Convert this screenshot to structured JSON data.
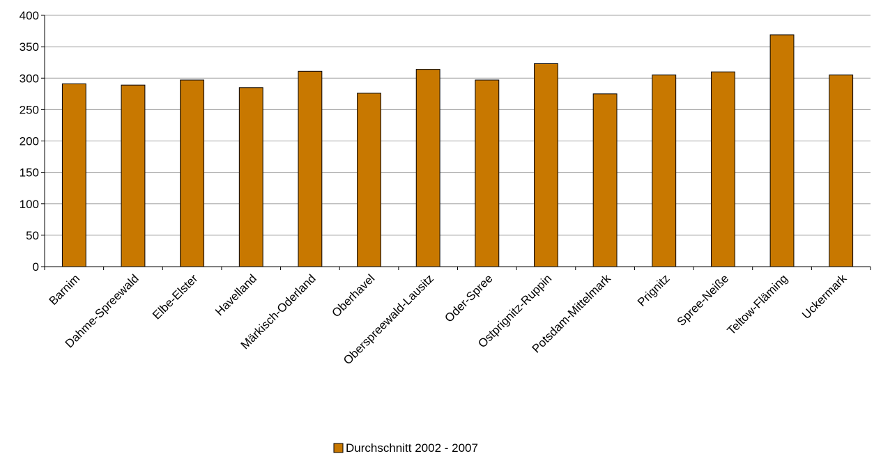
{
  "chart_data": {
    "type": "bar",
    "title": "",
    "xlabel": "",
    "ylabel": "",
    "ylim": [
      0,
      400
    ],
    "yticks": [
      0,
      50,
      100,
      150,
      200,
      250,
      300,
      350,
      400
    ],
    "grid": true,
    "legend_position": "bottom-center",
    "categories": [
      "Barnim",
      "Dahme-Spreewald",
      "Elbe-Elster",
      "Havelland",
      "Märkisch-Oderland",
      "Oberhavel",
      "Oberspreewald-Lausitz",
      "Oder-Spree",
      "Ostprignitz-Ruppin",
      "Potsdam-Mittelmark",
      "Prignitz",
      "Spree-Neiße",
      "Teltow-Fläming",
      "Uckermark"
    ],
    "series": [
      {
        "name": "Durchschnitt 2002 - 2007",
        "color": "#C87800",
        "values": [
          291,
          289,
          297,
          285,
          311,
          276,
          314,
          297,
          323,
          275,
          305,
          310,
          369,
          305
        ]
      }
    ]
  }
}
